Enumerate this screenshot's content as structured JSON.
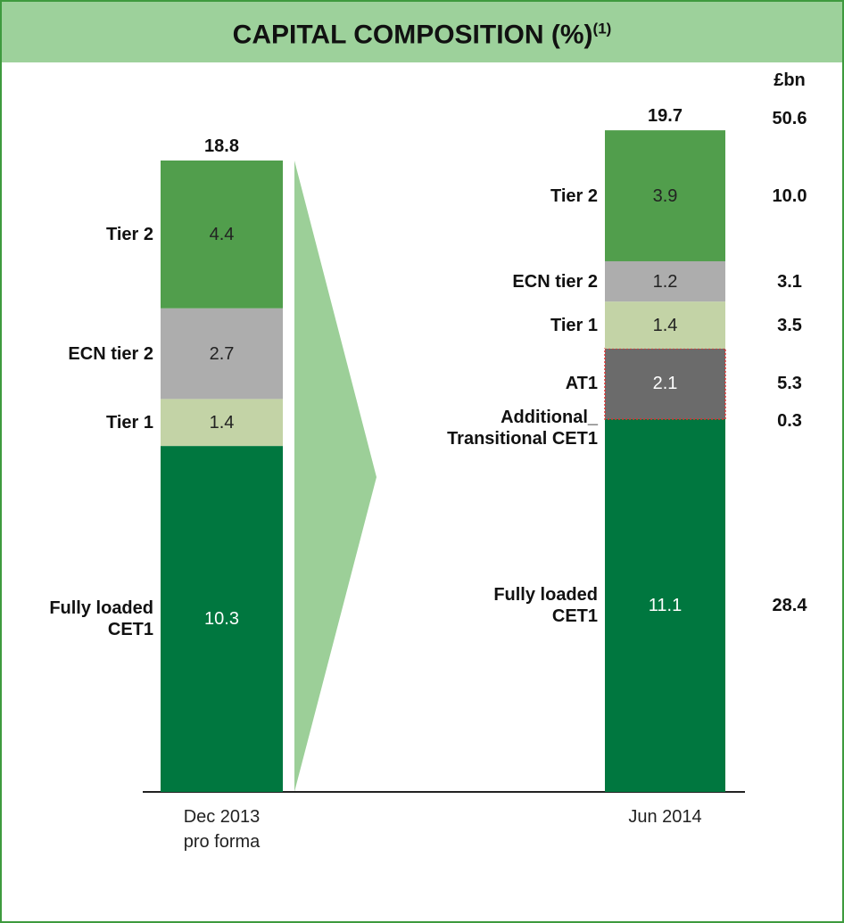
{
  "chart_data": {
    "type": "bar",
    "stacked": true,
    "title": "CAPITAL COMPOSITION (%)",
    "title_note": "(1)",
    "unit_label": "£bn",
    "categories": [
      [
        "Dec 2013",
        "pro forma"
      ],
      [
        "Jun 2014"
      ]
    ],
    "totals": [
      18.8,
      19.7
    ],
    "total_bn": 50.6,
    "series": [
      {
        "name": "Fully loaded\nCET1",
        "color": "#00773f",
        "text_color": "#ffffff",
        "values": [
          10.3,
          11.1
        ],
        "bn": 28.4
      },
      {
        "name": "AT1",
        "color": "#6b6b6b",
        "text_color": "#ffffff",
        "border": "#e03030",
        "values": [
          null,
          2.1
        ],
        "bn": 5.3
      },
      {
        "name": "Tier 1",
        "color": "#c3d3a6",
        "text_color": "#222222",
        "values": [
          1.4,
          1.4
        ],
        "bn": 3.5
      },
      {
        "name": "ECN tier 2",
        "color": "#adadad",
        "text_color": "#222222",
        "values": [
          2.7,
          1.2
        ],
        "bn": 3.1
      },
      {
        "name": "Tier 2",
        "color": "#519e4c",
        "text_color": "#222222",
        "values": [
          4.4,
          3.9
        ],
        "bn": 10.0,
        "bn_label": "10.0"
      }
    ],
    "transitional": {
      "name": "Additional_\nTransitional CET1",
      "bn": 0.3
    }
  }
}
